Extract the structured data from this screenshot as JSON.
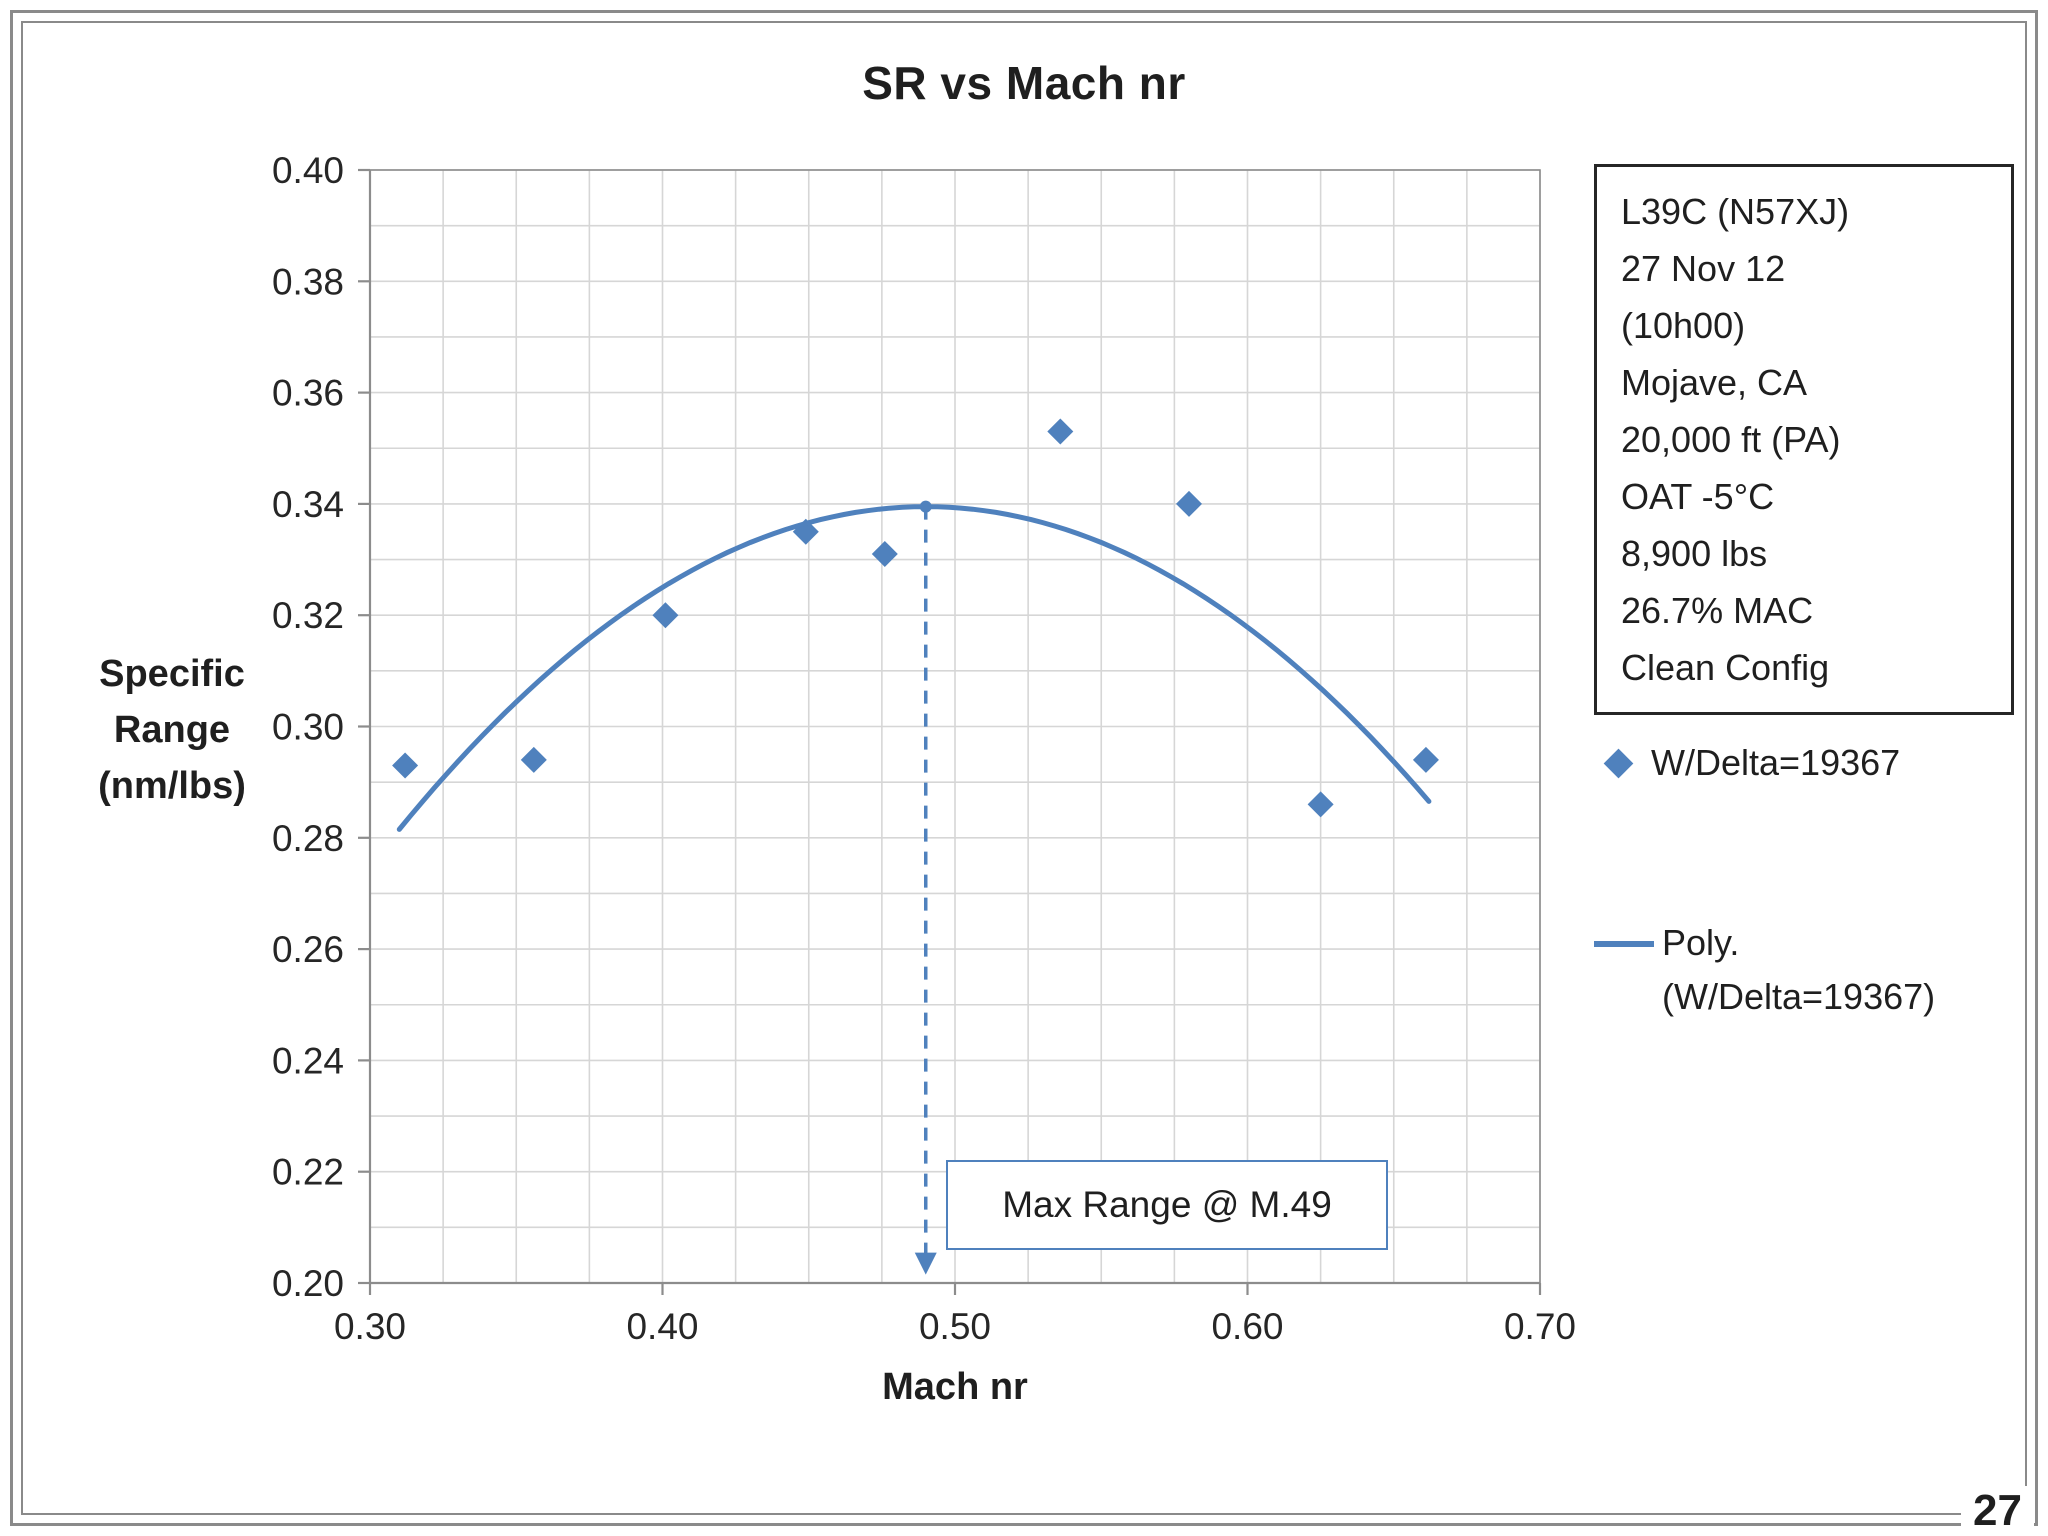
{
  "page_number": "27",
  "colors": {
    "accent": "#4f81bd",
    "grid": "#d6d6d6",
    "axis": "#8c8c8c",
    "text": "#262626"
  },
  "legend": {
    "info_box_lines": [
      "L39C (N57XJ)",
      "27 Nov 12",
      "(10h00)",
      "Mojave, CA",
      "20,000 ft (PA)",
      "OAT -5°C",
      "8,900 lbs",
      "26.7% MAC",
      "Clean Config"
    ],
    "series1_label": "W/Delta=19367",
    "series2_label_line1": "Poly.",
    "series2_label_line2": "(W/Delta=19367)"
  },
  "chart_data": {
    "type": "scatter",
    "title": "SR vs Mach nr",
    "xlabel": "Mach nr",
    "ylabel": "Specific Range (nm/lbs)",
    "ylabel_lines": [
      "Specific",
      "Range",
      "(nm/lbs)"
    ],
    "xlim": [
      0.3,
      0.7
    ],
    "ylim": [
      0.2,
      0.4
    ],
    "x_major_ticks": [
      0.3,
      0.4,
      0.5,
      0.6,
      0.7
    ],
    "x_minor_step": 0.025,
    "y_major_ticks": [
      0.2,
      0.22,
      0.24,
      0.26,
      0.28,
      0.3,
      0.32,
      0.34,
      0.36,
      0.38,
      0.4
    ],
    "y_minor_step": 0.01,
    "grid": true,
    "legend_position": "right",
    "series": [
      {
        "name": "W/Delta=19367",
        "type": "scatter",
        "marker": "diamond",
        "color": "#4f81bd",
        "points": [
          [
            0.312,
            0.293
          ],
          [
            0.356,
            0.294
          ],
          [
            0.401,
            0.32
          ],
          [
            0.449,
            0.335
          ],
          [
            0.476,
            0.331
          ],
          [
            0.536,
            0.353
          ],
          [
            0.58,
            0.34
          ],
          [
            0.625,
            0.286
          ],
          [
            0.661,
            0.294
          ]
        ]
      },
      {
        "name": "Poly. (W/Delta=19367)",
        "type": "poly_fit",
        "color": "#4f81bd",
        "fit": {
          "a": -1.79,
          "h": 0.49,
          "k": 0.3395
        },
        "x_range": [
          0.31,
          0.662
        ]
      }
    ],
    "annotation": {
      "label": "Max Range @ M.49",
      "x": 0.49,
      "arrow_y_top": 0.3395,
      "arrow_y_bottom": 0.2015
    }
  }
}
